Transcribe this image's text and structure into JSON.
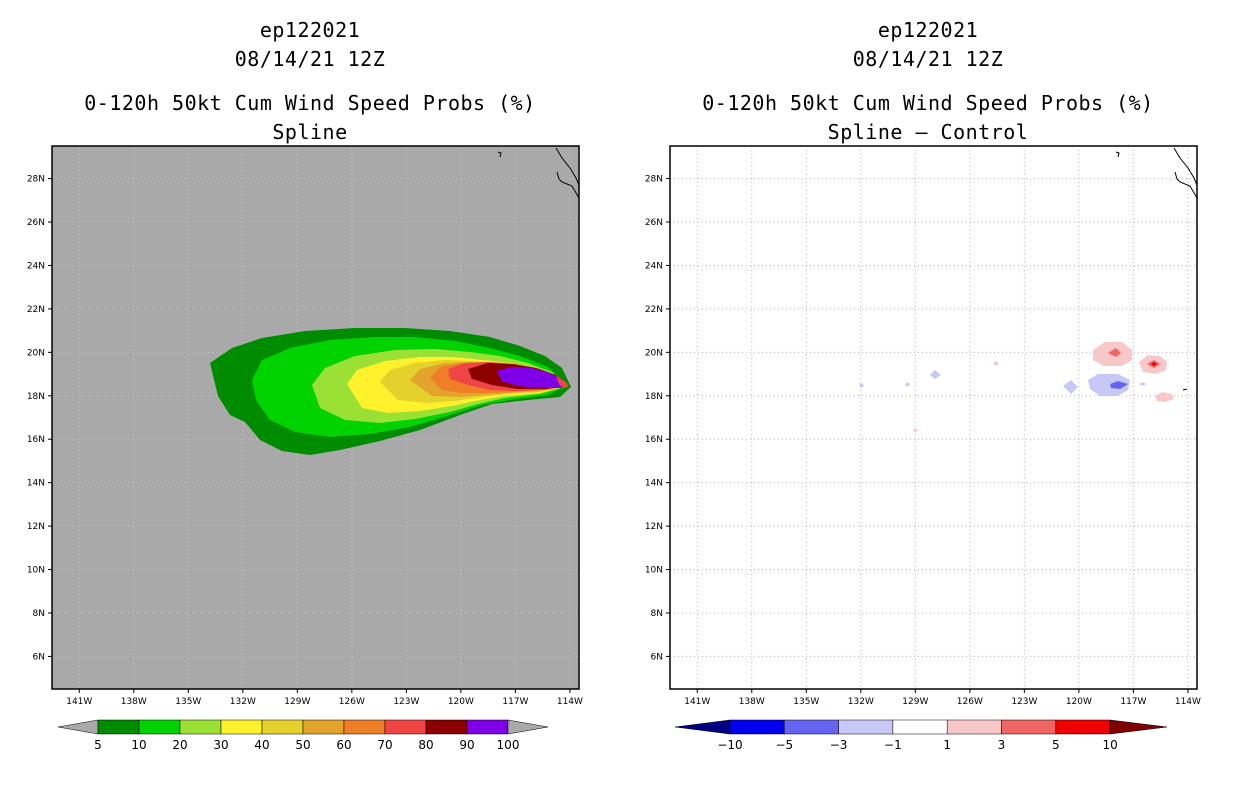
{
  "colors": {
    "land_gray": "#a9a9a9",
    "prob_levels": [
      "#008c00",
      "#00d300",
      "#9be135",
      "#fff12c",
      "#e5d12c",
      "#e2a42b",
      "#ef7f27",
      "#f04545",
      "#8c0000",
      "#7f00e6"
    ],
    "diff_levels": [
      "#000080",
      "#0000f0",
      "#6464f0",
      "#c8c8f8",
      "#ffffff",
      "#f8c8c8",
      "#f06464",
      "#f00000",
      "#800000"
    ]
  },
  "chart_data": [
    {
      "type": "heatmap",
      "storm_id": "ep122021",
      "init_time": "08/14/21 12Z",
      "title": "0-120h 50kt Cum Wind Speed Probs (%)",
      "subtitle": "Spline",
      "x_ticks": [
        "141W",
        "138W",
        "135W",
        "132W",
        "129W",
        "126W",
        "123W",
        "120W",
        "117W",
        "114W"
      ],
      "y_ticks": [
        "28N",
        "26N",
        "24N",
        "22N",
        "20N",
        "18N",
        "16N",
        "14N",
        "12N",
        "10N",
        "8N",
        "6N"
      ],
      "lon_range": [
        -142.5,
        -113.5
      ],
      "lat_range": [
        4.5,
        29.5
      ],
      "colorbar": [
        "5",
        "10",
        "20",
        "30",
        "40",
        "50",
        "60",
        "70",
        "80",
        "90",
        "100"
      ]
    },
    {
      "type": "heatmap",
      "storm_id": "ep122021",
      "init_time": "08/14/21 12Z",
      "title": "0-120h 50kt Cum Wind Speed Probs (%)",
      "subtitle": "Spline – Control",
      "x_ticks": [
        "141W",
        "138W",
        "135W",
        "132W",
        "129W",
        "126W",
        "123W",
        "120W",
        "117W",
        "114W"
      ],
      "y_ticks": [
        "28N",
        "26N",
        "24N",
        "22N",
        "20N",
        "18N",
        "16N",
        "14N",
        "12N",
        "10N",
        "8N",
        "6N"
      ],
      "lon_range": [
        -142.5,
        -113.5
      ],
      "lat_range": [
        4.5,
        29.5
      ],
      "colorbar": [
        "−10",
        "−5",
        "−3",
        "−1",
        "1",
        "3",
        "5",
        "10"
      ]
    }
  ]
}
